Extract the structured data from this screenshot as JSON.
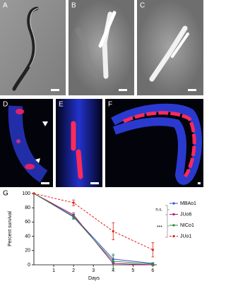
{
  "panels": [
    {
      "label": "A"
    },
    {
      "label": "B"
    },
    {
      "label": "C"
    },
    {
      "label": "D"
    },
    {
      "label": "E"
    },
    {
      "label": "F"
    },
    {
      "label": "G"
    }
  ],
  "chart_data": {
    "type": "line",
    "x_label": "Days",
    "y_label": "Percent survival",
    "x": [
      0,
      2,
      4,
      6
    ],
    "series": [
      {
        "name": "MBAo1",
        "color": "#3b4fd8",
        "dashed": false,
        "values": [
          100,
          68,
          8,
          2
        ],
        "errors": [
          0,
          3,
          5,
          1
        ]
      },
      {
        "name": "JUo6",
        "color": "#b0197a",
        "dashed": false,
        "values": [
          100,
          70,
          2,
          0
        ],
        "errors": [
          0,
          3,
          2,
          1
        ]
      },
      {
        "name": "NICo1",
        "color": "#2e8b3a",
        "dashed": false,
        "values": [
          100,
          67,
          5,
          1
        ],
        "errors": [
          0,
          3,
          10,
          2
        ]
      },
      {
        "name": "JUo1",
        "color": "#e0201b",
        "dashed": true,
        "values": [
          100,
          87,
          47,
          21
        ],
        "errors": [
          0,
          4,
          12,
          10
        ]
      }
    ],
    "xlim": [
      0,
      6.2
    ],
    "ylim": [
      0,
      100
    ],
    "xticks": [
      1,
      2,
      3,
      4,
      5,
      6
    ],
    "yticks": [
      0,
      20,
      40,
      60,
      80,
      100
    ],
    "annotations": [
      "n.s.",
      "***"
    ]
  }
}
